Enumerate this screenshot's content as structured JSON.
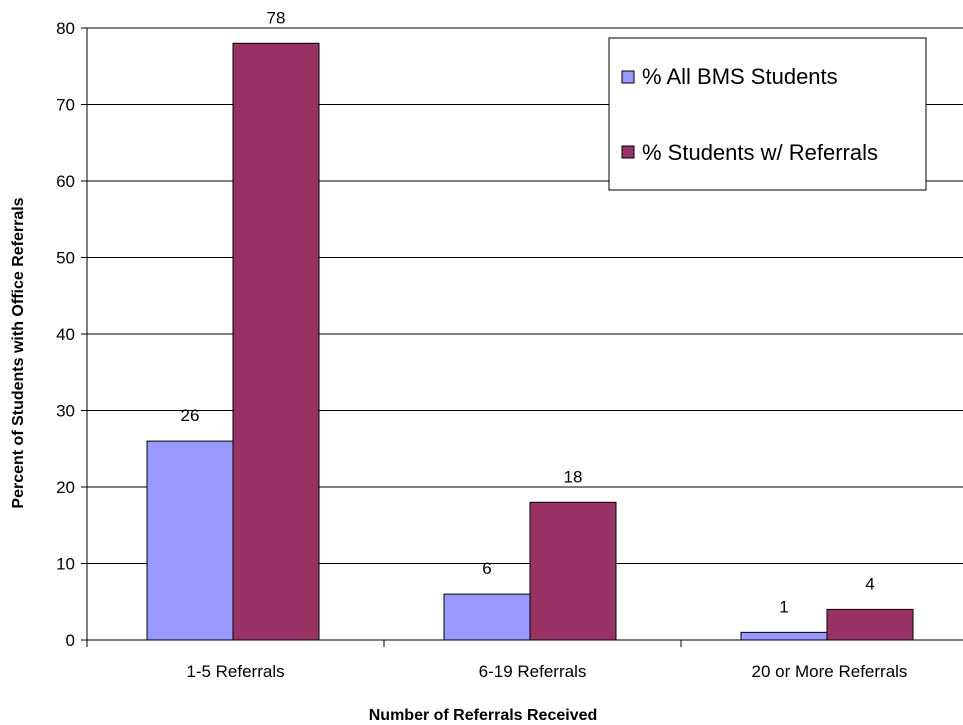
{
  "chart_data": {
    "type": "bar",
    "title": "",
    "xlabel": "Number of Referrals Received",
    "ylabel": "Percent of Students with Office Referrals",
    "ylim": [
      0,
      80
    ],
    "yticks": [
      0,
      10,
      20,
      30,
      40,
      50,
      60,
      70,
      80
    ],
    "categories": [
      "1-5 Referrals",
      "6-19 Referrals",
      "20 or More Referrals"
    ],
    "series": [
      {
        "name": "% All BMS Students",
        "values": [
          26,
          6,
          1
        ],
        "color": "#9999ff"
      },
      {
        "name": "% Students w/ Referrals",
        "values": [
          78,
          18,
          4
        ],
        "color": "#993366"
      }
    ],
    "grid": true,
    "legend_position": "top-right"
  }
}
